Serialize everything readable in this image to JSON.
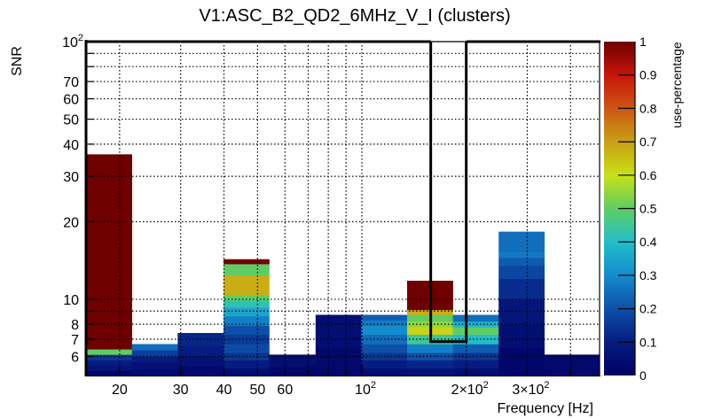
{
  "chart_data": {
    "type": "heatmap",
    "title": "V1:ASC_B2_QD2_6MHz_V_I (clusters)",
    "xlabel": "Frequency [Hz]",
    "ylabel": "SNR",
    "zlabel": "use-percentage",
    "xscale": "log",
    "yscale": "log",
    "xlim": [
      16.0,
      485
    ],
    "ylim": [
      5.06,
      100
    ],
    "zlim": [
      0,
      1
    ],
    "grid": true,
    "x_ticks": [
      {
        "value": 20,
        "label": "20"
      },
      {
        "value": 30,
        "label": "30"
      },
      {
        "value": 40,
        "label": "40"
      },
      {
        "value": 50,
        "label": "50"
      },
      {
        "value": 60,
        "label": "60"
      },
      {
        "value": 100,
        "label": "10",
        "sup": "2"
      },
      {
        "value": 200,
        "label": "2×10",
        "sup": "2"
      },
      {
        "value": 300,
        "label": "3×10",
        "sup": "2"
      }
    ],
    "x_minor_grid": [
      70,
      80,
      90,
      400
    ],
    "y_ticks": [
      {
        "value": 6,
        "label": "6"
      },
      {
        "value": 7,
        "label": "7"
      },
      {
        "value": 8,
        "label": "8"
      },
      {
        "value": 10,
        "label": "10"
      },
      {
        "value": 20,
        "label": "20"
      },
      {
        "value": 30,
        "label": "30"
      },
      {
        "value": 40,
        "label": "40"
      },
      {
        "value": 50,
        "label": "50"
      },
      {
        "value": 60,
        "label": "60"
      },
      {
        "value": 70,
        "label": "70"
      },
      {
        "value": 100,
        "label": "10",
        "sup": "2"
      }
    ],
    "y_unlabeled_grid": [
      9,
      80,
      90
    ],
    "z_ticks": [
      "0",
      "0.1",
      "0.2",
      "0.3",
      "0.4",
      "0.5",
      "0.6",
      "0.7",
      "0.8",
      "0.9",
      "1"
    ],
    "colorbar_position": "right",
    "highlight_window": {
      "f_low": 158,
      "f_high": 200,
      "snr_low": 6.85,
      "snr_high": 100
    },
    "bins": [
      {
        "f_low": 16.0,
        "f_high": 21.7,
        "cells": [
          {
            "snr": [
              5.06,
              5.3
            ],
            "z": 0.02
          },
          {
            "snr": [
              5.3,
              5.55
            ],
            "z": 0.07
          },
          {
            "snr": [
              5.55,
              5.8
            ],
            "z": 0.1
          },
          {
            "snr": [
              5.8,
              6.1
            ],
            "z": 0.15
          },
          {
            "snr": [
              6.1,
              6.4
            ],
            "z": 0.5
          },
          {
            "snr": [
              6.4,
              36.5
            ],
            "z": 1.0
          }
        ]
      },
      {
        "f_low": 21.7,
        "f_high": 29.4,
        "cells": [
          {
            "snr": [
              5.06,
              5.35
            ],
            "z": 0.04
          },
          {
            "snr": [
              5.35,
              5.7
            ],
            "z": 0.06
          },
          {
            "snr": [
              5.7,
              6.0
            ],
            "z": 0.1
          },
          {
            "snr": [
              6.0,
              6.35
            ],
            "z": 0.17
          },
          {
            "snr": [
              6.35,
              6.7
            ],
            "z": 0.25
          }
        ]
      },
      {
        "f_low": 29.4,
        "f_high": 39.9,
        "cells": [
          {
            "snr": [
              5.06,
              5.5
            ],
            "z": 0.03
          },
          {
            "snr": [
              5.5,
              6.0
            ],
            "z": 0.06
          },
          {
            "snr": [
              6.0,
              6.6
            ],
            "z": 0.1
          },
          {
            "snr": [
              6.6,
              7.4
            ],
            "z": 0.12
          }
        ]
      },
      {
        "f_low": 39.9,
        "f_high": 54.0,
        "cells": [
          {
            "snr": [
              5.06,
              5.4
            ],
            "z": 0.05
          },
          {
            "snr": [
              5.4,
              5.8
            ],
            "z": 0.1
          },
          {
            "snr": [
              5.8,
              6.2
            ],
            "z": 0.15
          },
          {
            "snr": [
              6.2,
              6.7
            ],
            "z": 0.19
          },
          {
            "snr": [
              6.7,
              7.3
            ],
            "z": 0.16
          },
          {
            "snr": [
              7.3,
              7.9
            ],
            "z": 0.2
          },
          {
            "snr": [
              7.9,
              8.6
            ],
            "z": 0.28
          },
          {
            "snr": [
              8.6,
              9.3
            ],
            "z": 0.35
          },
          {
            "snr": [
              9.3,
              9.9
            ],
            "z": 0.42
          },
          {
            "snr": [
              9.9,
              10.4
            ],
            "z": 0.5
          },
          {
            "snr": [
              10.4,
              12.4
            ],
            "z": 0.68
          },
          {
            "snr": [
              12.4,
              13.7
            ],
            "z": 0.5
          },
          {
            "snr": [
              13.7,
              14.3
            ],
            "z": 1.0
          }
        ]
      },
      {
        "f_low": 54.0,
        "f_high": 73.5,
        "cells": [
          {
            "snr": [
              5.06,
              5.5
            ],
            "z": 0.02
          },
          {
            "snr": [
              5.5,
              6.1
            ],
            "z": 0.05
          }
        ]
      },
      {
        "f_low": 73.5,
        "f_high": 99.5,
        "cells": [
          {
            "snr": [
              5.06,
              6.5
            ],
            "z": 0.03
          },
          {
            "snr": [
              6.5,
              8.7
            ],
            "z": 0.05
          }
        ]
      },
      {
        "f_low": 99.5,
        "f_high": 135,
        "cells": [
          {
            "snr": [
              5.06,
              5.4
            ],
            "z": 0.05
          },
          {
            "snr": [
              5.4,
              5.8
            ],
            "z": 0.1
          },
          {
            "snr": [
              5.8,
              6.2
            ],
            "z": 0.15
          },
          {
            "snr": [
              6.2,
              6.7
            ],
            "z": 0.2
          },
          {
            "snr": [
              6.7,
              7.3
            ],
            "z": 0.25
          },
          {
            "snr": [
              7.3,
              7.9
            ],
            "z": 0.3
          },
          {
            "snr": [
              7.9,
              8.3
            ],
            "z": 0.27
          },
          {
            "snr": [
              8.3,
              8.7
            ],
            "z": 0.22
          }
        ]
      },
      {
        "f_low": 135,
        "f_high": 183,
        "cells": [
          {
            "snr": [
              5.06,
              5.4
            ],
            "z": 0.06
          },
          {
            "snr": [
              5.4,
              5.8
            ],
            "z": 0.12
          },
          {
            "snr": [
              5.8,
              6.2
            ],
            "z": 0.2
          },
          {
            "snr": [
              6.2,
              6.7
            ],
            "z": 0.28
          },
          {
            "snr": [
              6.7,
              7.3
            ],
            "z": 0.45
          },
          {
            "snr": [
              7.3,
              7.8
            ],
            "z": 0.62
          },
          {
            "snr": [
              7.8,
              8.2
            ],
            "z": 0.55
          },
          {
            "snr": [
              8.2,
              8.7
            ],
            "z": 0.5
          },
          {
            "snr": [
              8.7,
              9.1
            ],
            "z": 0.68
          },
          {
            "snr": [
              9.1,
              11.8
            ],
            "z": 1.0
          }
        ]
      },
      {
        "f_low": 183,
        "f_high": 248,
        "cells": [
          {
            "snr": [
              5.06,
              5.4
            ],
            "z": 0.05
          },
          {
            "snr": [
              5.4,
              5.8
            ],
            "z": 0.1
          },
          {
            "snr": [
              5.8,
              6.2
            ],
            "z": 0.15
          },
          {
            "snr": [
              6.2,
              6.7
            ],
            "z": 0.22
          },
          {
            "snr": [
              6.7,
              7.3
            ],
            "z": 0.4
          },
          {
            "snr": [
              7.3,
              7.8
            ],
            "z": 0.5
          },
          {
            "snr": [
              7.8,
              8.2
            ],
            "z": 0.38
          },
          {
            "snr": [
              8.2,
              8.7
            ],
            "z": 0.25
          }
        ]
      },
      {
        "f_low": 248,
        "f_high": 336,
        "cells": [
          {
            "snr": [
              5.06,
              6.5
            ],
            "z": 0.02
          },
          {
            "snr": [
              6.5,
              8.0
            ],
            "z": 0.05
          },
          {
            "snr": [
              8.0,
              10.0
            ],
            "z": 0.08
          },
          {
            "snr": [
              10.0,
              12.0
            ],
            "z": 0.13
          },
          {
            "snr": [
              12.0,
              13.5
            ],
            "z": 0.18
          },
          {
            "snr": [
              13.5,
              14.5
            ],
            "z": 0.22
          },
          {
            "snr": [
              14.5,
              15.3
            ],
            "z": 0.27
          },
          {
            "snr": [
              15.3,
              18.3
            ],
            "z": 0.25
          }
        ]
      },
      {
        "f_low": 336,
        "f_high": 485,
        "cells": [
          {
            "snr": [
              5.06,
              6.1
            ],
            "z": 0.03
          }
        ]
      }
    ]
  }
}
